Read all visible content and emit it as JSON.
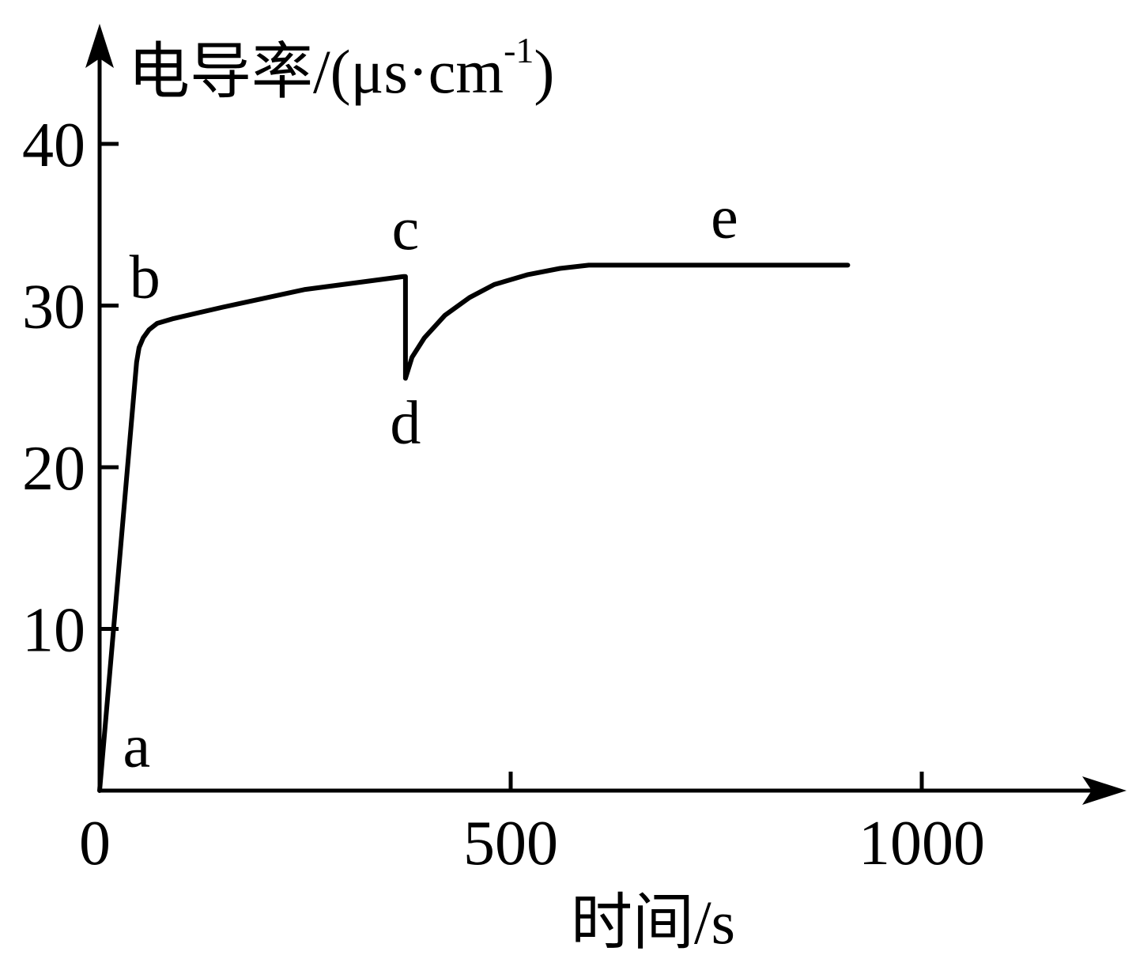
{
  "chart_data": {
    "type": "line",
    "xlabel": "时间/s",
    "ylabel_main": "电导率/(μs·cm",
    "ylabel_sup": "-1",
    "ylabel_close": ")",
    "xlim": [
      0,
      1250
    ],
    "ylim": [
      0,
      45
    ],
    "x_ticks": [
      {
        "value": 0,
        "label": "0"
      },
      {
        "value": 500,
        "label": "500"
      },
      {
        "value": 1000,
        "label": "1000"
      }
    ],
    "y_ticks": [
      {
        "value": 10,
        "label": "10"
      },
      {
        "value": 20,
        "label": "20"
      },
      {
        "value": 30,
        "label": "30"
      },
      {
        "value": 40,
        "label": "40"
      }
    ],
    "series": [
      {
        "points": [
          [
            0,
            0
          ],
          [
            45,
            26.5
          ],
          [
            48,
            27.4
          ],
          [
            53,
            28.0
          ],
          [
            60,
            28.5
          ],
          [
            70,
            28.9
          ],
          [
            90,
            29.2
          ],
          [
            150,
            29.9
          ],
          [
            250,
            31.0
          ],
          [
            370,
            31.8
          ],
          [
            372,
            31.8
          ],
          [
            372,
            25.5
          ],
          [
            380,
            26.8
          ],
          [
            395,
            28.0
          ],
          [
            420,
            29.4
          ],
          [
            450,
            30.5
          ],
          [
            480,
            31.3
          ],
          [
            520,
            31.9
          ],
          [
            560,
            32.3
          ],
          [
            595,
            32.5
          ],
          [
            910,
            32.5
          ]
        ],
        "color": "#000000"
      }
    ],
    "annotations": [
      {
        "text": "a",
        "x": 45,
        "y": 1.5
      },
      {
        "text": "b",
        "x": 55,
        "y": 30.5
      },
      {
        "text": "c",
        "x": 372,
        "y": 33.5
      },
      {
        "text": "d",
        "x": 372,
        "y": 21.5
      },
      {
        "text": "e",
        "x": 760,
        "y": 34.2
      }
    ],
    "grid": false,
    "legend": "none"
  }
}
